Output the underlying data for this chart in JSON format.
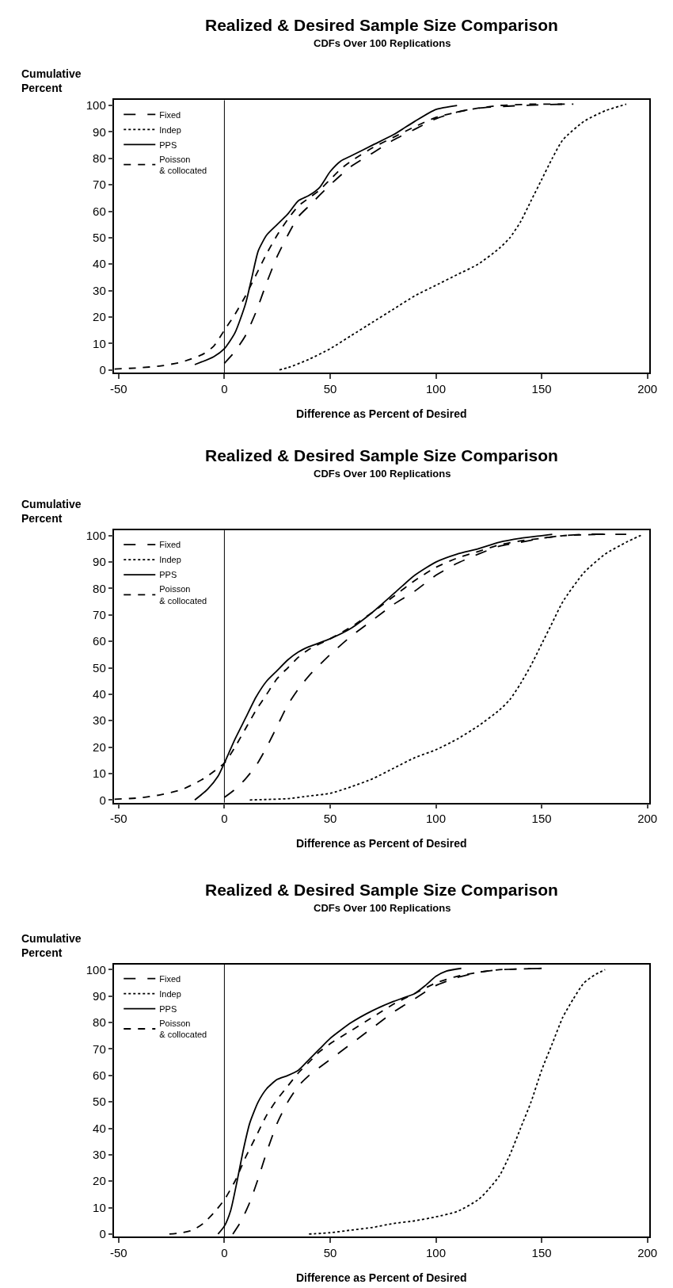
{
  "chart_data": [
    {
      "type": "line",
      "title": "Realized & Desired Sample Size Comparison",
      "subtitle": "CDFs Over 100 Replications",
      "xlabel": "Difference as Percent of Desired",
      "ylabel": "Cumulative\nPercent",
      "xlim": [
        -52,
        201
      ],
      "ylim": [
        -1,
        102
      ],
      "xticks": [
        -50,
        0,
        50,
        100,
        150,
        200
      ],
      "yticks": [
        0,
        10,
        20,
        30,
        40,
        50,
        60,
        70,
        80,
        90,
        100
      ],
      "legend": "top left",
      "marker": "none",
      "ref_lines": [
        {
          "axis": "x",
          "value": 0,
          "color": "#000000",
          "line_style": "solid"
        }
      ],
      "series": [
        {
          "name": "Fixed",
          "color": "#000000",
          "line_style": "longdash",
          "x": [
            0,
            5,
            10,
            15,
            20,
            25,
            30,
            35,
            40,
            50,
            60,
            70,
            80,
            90,
            100,
            110,
            120,
            140,
            160
          ],
          "values": [
            2.5,
            7,
            13,
            22,
            33,
            43,
            51,
            58,
            62,
            70,
            77,
            82,
            87,
            91,
            95,
            97.5,
            99,
            100,
            100.5
          ]
        },
        {
          "name": "Indep",
          "color": "#000000",
          "line_style": "dotted",
          "x": [
            26,
            30,
            40,
            50,
            60,
            70,
            80,
            90,
            100,
            110,
            120,
            130,
            135,
            140,
            145,
            150,
            155,
            160,
            170,
            180,
            190
          ],
          "values": [
            0,
            0.8,
            4,
            8,
            13,
            18,
            23,
            28,
            32,
            36,
            40,
            46,
            50,
            56,
            64,
            72,
            80,
            87,
            94,
            98,
            100.5
          ]
        },
        {
          "name": "PPS",
          "color": "#000000",
          "line_style": "solid",
          "x": [
            -14,
            -5,
            0,
            5,
            10,
            13,
            16,
            20,
            25,
            30,
            35,
            40,
            45,
            50,
            55,
            60,
            70,
            80,
            90,
            100,
            110
          ],
          "values": [
            2,
            5,
            8,
            14,
            25,
            35,
            45,
            51,
            55,
            59,
            64,
            66,
            69,
            75,
            79,
            81,
            85,
            89,
            94,
            98.5,
            100
          ]
        },
        {
          "name": "Poisson\n& collocated",
          "color": "#000000",
          "line_style": "dashed",
          "x": [
            -52,
            -40,
            -30,
            -20,
            -10,
            -5,
            0,
            5,
            10,
            15,
            20,
            25,
            30,
            35,
            40,
            45,
            50,
            55,
            60,
            70,
            80,
            90,
            100,
            110,
            120,
            130,
            145,
            165
          ],
          "values": [
            0.3,
            0.8,
            1.5,
            3,
            6,
            9,
            15,
            21,
            28,
            36,
            44,
            51,
            57,
            62,
            65,
            68,
            72,
            76,
            79,
            84,
            88,
            92,
            95.5,
            97.5,
            99,
            100,
            100.5,
            100.5
          ]
        }
      ]
    },
    {
      "type": "line",
      "title": "Realized & Desired Sample Size Comparison",
      "subtitle": "CDFs Over 100 Replications",
      "xlabel": "Difference as Percent of Desired",
      "ylabel": "Cumulative\nPercent",
      "xlim": [
        -52,
        201
      ],
      "ylim": [
        -1,
        102
      ],
      "xticks": [
        -50,
        0,
        50,
        100,
        150,
        200
      ],
      "yticks": [
        0,
        10,
        20,
        30,
        40,
        50,
        60,
        70,
        80,
        90,
        100
      ],
      "legend": "top left",
      "marker": "none",
      "ref_lines": [
        {
          "axis": "x",
          "value": 0,
          "color": "#000000",
          "line_style": "solid"
        }
      ],
      "series": [
        {
          "name": "Fixed",
          "color": "#000000",
          "line_style": "longdash",
          "x": [
            0,
            5,
            10,
            15,
            20,
            25,
            30,
            35,
            40,
            50,
            60,
            70,
            80,
            90,
            100,
            110,
            120,
            130,
            140,
            150,
            160,
            170,
            190
          ],
          "values": [
            1,
            4,
            8,
            13,
            20,
            28,
            36,
            42,
            47,
            55,
            62,
            68,
            74,
            79,
            85,
            89.5,
            93,
            96,
            97.5,
            99,
            100,
            100.5,
            100.5
          ]
        },
        {
          "name": "Indep",
          "color": "#000000",
          "line_style": "dotted",
          "x": [
            12,
            20,
            30,
            40,
            50,
            60,
            70,
            80,
            90,
            100,
            110,
            120,
            130,
            135,
            140,
            145,
            150,
            155,
            160,
            170,
            180,
            190,
            198
          ],
          "values": [
            0,
            0.2,
            0.5,
            1.5,
            2.5,
            5,
            8,
            12,
            16,
            19,
            23,
            28,
            34,
            38,
            44,
            51,
            59,
            67,
            75,
            86,
            93,
            97.5,
            100.5
          ]
        },
        {
          "name": "PPS",
          "color": "#000000",
          "line_style": "solid",
          "x": [
            -14,
            -8,
            -3,
            0,
            5,
            10,
            15,
            20,
            25,
            30,
            35,
            40,
            50,
            60,
            70,
            80,
            90,
            100,
            110,
            120,
            130,
            140,
            150,
            155
          ],
          "values": [
            0,
            4,
            9,
            14,
            23,
            31,
            39,
            45,
            49,
            53,
            56,
            58,
            61,
            65,
            71,
            78,
            85,
            90,
            93,
            95,
            97.5,
            99,
            100,
            100.5
          ]
        },
        {
          "name": "Poisson\n& collocated",
          "color": "#000000",
          "line_style": "dashed",
          "x": [
            -52,
            -40,
            -30,
            -20,
            -10,
            0,
            5,
            10,
            15,
            20,
            25,
            30,
            35,
            40,
            50,
            60,
            70,
            80,
            90,
            100,
            110,
            120,
            130,
            140,
            150,
            160,
            180
          ],
          "values": [
            0.3,
            0.8,
            2,
            4,
            8,
            14,
            20,
            27,
            34,
            40,
            46,
            50,
            54,
            57,
            61,
            65.5,
            71,
            77,
            83,
            88,
            91.5,
            94,
            96.5,
            98,
            99,
            100,
            100.5
          ]
        }
      ]
    },
    {
      "type": "line",
      "title": "Realized & Desired Sample Size Comparison",
      "subtitle": "CDFs Over 100 Replications",
      "xlabel": "Difference as Percent of Desired",
      "ylabel": "Cumulative\nPercent",
      "xlim": [
        -52,
        201
      ],
      "ylim": [
        -1,
        102
      ],
      "xticks": [
        -50,
        0,
        50,
        100,
        150,
        200
      ],
      "yticks": [
        0,
        10,
        20,
        30,
        40,
        50,
        60,
        70,
        80,
        90,
        100
      ],
      "legend": "top left",
      "marker": "none",
      "ref_lines": [
        {
          "axis": "x",
          "value": 0,
          "color": "#000000",
          "line_style": "solid"
        }
      ],
      "series": [
        {
          "name": "Fixed",
          "color": "#000000",
          "line_style": "longdash",
          "x": [
            4,
            8,
            12,
            16,
            20,
            25,
            30,
            35,
            40,
            50,
            60,
            70,
            80,
            90,
            100,
            110,
            120,
            130,
            150
          ],
          "values": [
            0,
            5,
            12,
            21,
            31,
            42,
            50,
            56,
            60,
            66,
            72,
            78,
            84,
            89,
            94,
            97,
            99,
            100,
            100.5
          ]
        },
        {
          "name": "Indep",
          "color": "#000000",
          "line_style": "dotted",
          "x": [
            40,
            50,
            60,
            70,
            80,
            90,
            100,
            110,
            120,
            125,
            130,
            135,
            140,
            145,
            150,
            155,
            160,
            165,
            170,
            175,
            180
          ],
          "values": [
            0,
            0.5,
            1.5,
            2.5,
            4,
            5,
            6.5,
            8.5,
            13,
            17,
            22,
            30,
            40,
            50,
            62,
            72,
            82,
            89,
            95,
            98,
            100
          ]
        },
        {
          "name": "PPS",
          "color": "#000000",
          "line_style": "solid",
          "x": [
            -3,
            0,
            3,
            6,
            9,
            12,
            16,
            20,
            25,
            30,
            35,
            40,
            45,
            50,
            60,
            70,
            80,
            90,
            95,
            100,
            105,
            112
          ],
          "values": [
            0,
            3,
            9,
            20,
            32,
            42,
            50,
            55,
            58.5,
            60,
            62,
            66,
            70,
            74,
            80,
            84.5,
            88,
            91,
            94,
            97.5,
            99.5,
            100.5
          ]
        },
        {
          "name": "Poisson\n& collocated",
          "color": "#000000",
          "line_style": "dashed",
          "x": [
            -26,
            -20,
            -15,
            -10,
            -5,
            0,
            5,
            10,
            15,
            20,
            25,
            30,
            35,
            40,
            45,
            50,
            60,
            70,
            80,
            90,
            100,
            110,
            120,
            130,
            150
          ],
          "values": [
            0,
            0.5,
            1.5,
            4,
            8,
            13,
            20,
            29,
            37,
            45,
            51,
            56,
            61,
            65,
            69,
            72,
            77,
            82,
            87,
            91,
            95,
            97.5,
            99,
            100,
            100.5
          ]
        }
      ]
    }
  ]
}
